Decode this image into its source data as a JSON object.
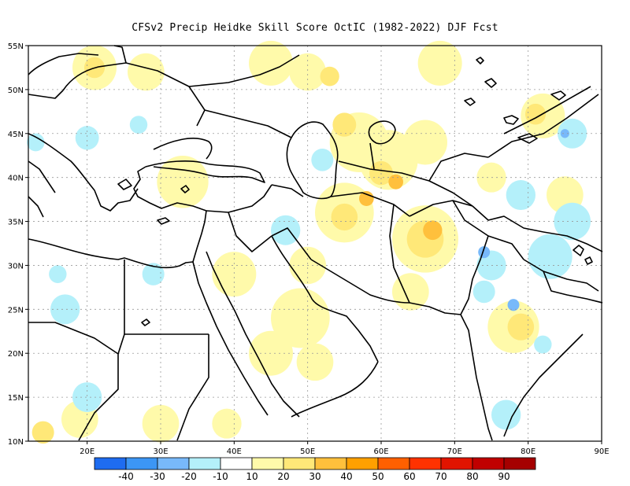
{
  "title": "CFSv2 Precip Heidke Skill Score OctIC (1982-2022) DJF Fcst",
  "map": {
    "lon_range": [
      12,
      90
    ],
    "lat_range": [
      10,
      55
    ],
    "lon_ticks": [
      {
        "value": 20,
        "label": "20E"
      },
      {
        "value": 30,
        "label": "30E"
      },
      {
        "value": 40,
        "label": "40E"
      },
      {
        "value": 50,
        "label": "50E"
      },
      {
        "value": 60,
        "label": "60E"
      },
      {
        "value": 70,
        "label": "70E"
      },
      {
        "value": 80,
        "label": "80E"
      },
      {
        "value": 90,
        "label": "90E"
      }
    ],
    "lat_ticks": [
      {
        "value": 10,
        "label": "10N"
      },
      {
        "value": 15,
        "label": "15N"
      },
      {
        "value": 20,
        "label": "20N"
      },
      {
        "value": 25,
        "label": "25N"
      },
      {
        "value": 30,
        "label": "30N"
      },
      {
        "value": 35,
        "label": "35N"
      },
      {
        "value": 40,
        "label": "40N"
      },
      {
        "value": 45,
        "label": "45N"
      },
      {
        "value": 50,
        "label": "50N"
      },
      {
        "value": 55,
        "label": "55N"
      }
    ],
    "gridlines": "dotted"
  },
  "colorbar": {
    "labels": [
      "-40",
      "-30",
      "-20",
      "-10",
      "10",
      "20",
      "30",
      "40",
      "50",
      "60",
      "70",
      "80",
      "90"
    ],
    "colors": [
      "#1e6cf0",
      "#3c96f5",
      "#78b9fa",
      "#b4f0fa",
      "#ffffff",
      "#fffaaa",
      "#ffe878",
      "#ffc03c",
      "#ffa000",
      "#ff6000",
      "#ff3200",
      "#e11400",
      "#c00000",
      "#a50000"
    ]
  },
  "patches": [
    {
      "lon": 21,
      "lat": 52.5,
      "r": 3,
      "level": 20
    },
    {
      "lon": 21,
      "lat": 52.5,
      "r": 1.4,
      "level": 30
    },
    {
      "lon": 28,
      "lat": 52,
      "r": 2.5,
      "level": 20
    },
    {
      "lon": 45,
      "lat": 53,
      "r": 3,
      "level": 20
    },
    {
      "lon": 50,
      "lat": 52,
      "r": 2.5,
      "level": 20
    },
    {
      "lon": 53,
      "lat": 51.5,
      "r": 1.3,
      "level": 30
    },
    {
      "lon": 68,
      "lat": 53,
      "r": 3,
      "level": 20
    },
    {
      "lon": 82,
      "lat": 47,
      "r": 3,
      "level": 20
    },
    {
      "lon": 81,
      "lat": 47.2,
      "r": 1.4,
      "level": 30
    },
    {
      "lon": 57,
      "lat": 44,
      "r": 4,
      "level": 20
    },
    {
      "lon": 61,
      "lat": 42,
      "r": 4,
      "level": 20
    },
    {
      "lon": 55,
      "lat": 46,
      "r": 1.6,
      "level": 30
    },
    {
      "lon": 60,
      "lat": 40.5,
      "r": 1.6,
      "level": 30
    },
    {
      "lon": 62,
      "lat": 39.5,
      "r": 1,
      "level": 40
    },
    {
      "lon": 66,
      "lat": 44,
      "r": 3,
      "level": 20
    },
    {
      "lon": 33,
      "lat": 39.5,
      "r": 3.5,
      "level": 20
    },
    {
      "lon": 55,
      "lat": 36,
      "r": 4,
      "level": 20
    },
    {
      "lon": 55,
      "lat": 35.5,
      "r": 1.8,
      "level": 30
    },
    {
      "lon": 58,
      "lat": 37.6,
      "r": 1,
      "level": 40
    },
    {
      "lon": 66,
      "lat": 33,
      "r": 4.5,
      "level": 20
    },
    {
      "lon": 66,
      "lat": 33,
      "r": 2.5,
      "level": 30
    },
    {
      "lon": 67,
      "lat": 34,
      "r": 1.3,
      "level": 40
    },
    {
      "lon": 64,
      "lat": 27,
      "r": 2.5,
      "level": 20
    },
    {
      "lon": 49,
      "lat": 24,
      "r": 4,
      "level": 20
    },
    {
      "lon": 45,
      "lat": 20,
      "r": 3,
      "level": 20
    },
    {
      "lon": 51,
      "lat": 19,
      "r": 2.5,
      "level": 20
    },
    {
      "lon": 78,
      "lat": 23,
      "r": 3.5,
      "level": 20
    },
    {
      "lon": 79,
      "lat": 23,
      "r": 1.8,
      "level": 30
    },
    {
      "lon": 19,
      "lat": 12.5,
      "r": 2.5,
      "level": 20
    },
    {
      "lon": 14,
      "lat": 11,
      "r": 1.5,
      "level": 30
    },
    {
      "lon": 30,
      "lat": 12,
      "r": 2.5,
      "level": 20
    },
    {
      "lon": 39,
      "lat": 12,
      "r": 2,
      "level": 20
    },
    {
      "lon": 40,
      "lat": 29,
      "r": 3,
      "level": 20
    },
    {
      "lon": 50,
      "lat": 30,
      "r": 2.5,
      "level": 20
    },
    {
      "lon": 85,
      "lat": 38,
      "r": 2.5,
      "level": 20
    },
    {
      "lon": 75,
      "lat": 40,
      "r": 2,
      "level": 20
    },
    {
      "lon": 20,
      "lat": 44.5,
      "r": 1.6,
      "level": -10
    },
    {
      "lon": 27,
      "lat": 46,
      "r": 1.2,
      "level": -10
    },
    {
      "lon": 13,
      "lat": 44,
      "r": 1.2,
      "level": -10
    },
    {
      "lon": 52,
      "lat": 42,
      "r": 1.5,
      "level": -10
    },
    {
      "lon": 47,
      "lat": 34,
      "r": 2,
      "level": -10
    },
    {
      "lon": 83,
      "lat": 31,
      "r": 3,
      "level": -10
    },
    {
      "lon": 86,
      "lat": 35,
      "r": 2.5,
      "level": -10
    },
    {
      "lon": 79,
      "lat": 38,
      "r": 2,
      "level": -10
    },
    {
      "lon": 75,
      "lat": 30,
      "r": 2,
      "level": -10
    },
    {
      "lon": 74,
      "lat": 27,
      "r": 1.5,
      "level": -10
    },
    {
      "lon": 17,
      "lat": 25,
      "r": 2,
      "level": -10
    },
    {
      "lon": 16,
      "lat": 29,
      "r": 1.2,
      "level": -10
    },
    {
      "lon": 29,
      "lat": 29,
      "r": 1.5,
      "level": -10
    },
    {
      "lon": 20,
      "lat": 15,
      "r": 2,
      "level": -10
    },
    {
      "lon": 77,
      "lat": 13,
      "r": 2,
      "level": -10
    },
    {
      "lon": 82,
      "lat": 21,
      "r": 1.2,
      "level": -10
    },
    {
      "lon": 86,
      "lat": 45,
      "r": 2,
      "level": -10
    },
    {
      "lon": 74,
      "lat": 31.5,
      "r": 0.8,
      "level": -20
    },
    {
      "lon": 78,
      "lat": 25.5,
      "r": 0.8,
      "level": -20
    },
    {
      "lon": 85,
      "lat": 45,
      "r": 0.6,
      "level": -20
    }
  ]
}
